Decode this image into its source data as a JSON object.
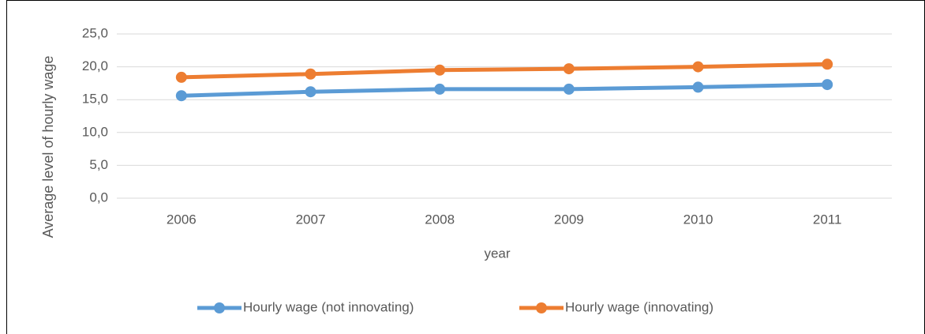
{
  "chart_data": {
    "type": "line",
    "categories": [
      "2006",
      "2007",
      "2008",
      "2009",
      "2010",
      "2011"
    ],
    "series": [
      {
        "name": "Hourly wage (not innovating)",
        "color": "#5b9bd5",
        "values": [
          15.6,
          16.2,
          16.6,
          16.6,
          16.9,
          17.3
        ]
      },
      {
        "name": "Hourly wage (innovating)",
        "color": "#ed7d31",
        "values": [
          18.4,
          18.9,
          19.5,
          19.7,
          20.0,
          20.4
        ]
      }
    ],
    "xlabel": "year",
    "ylabel": "Average level of hourly wage",
    "ylim": [
      0,
      25
    ],
    "yticks": [
      {
        "value": 0,
        "label": "0,0"
      },
      {
        "value": 5,
        "label": "5,0"
      },
      {
        "value": 10,
        "label": "10,0"
      },
      {
        "value": 15,
        "label": "15,0"
      },
      {
        "value": 20,
        "label": "20,0"
      },
      {
        "value": 25,
        "label": "25,0"
      }
    ],
    "grid": true,
    "legend": "bottom"
  }
}
